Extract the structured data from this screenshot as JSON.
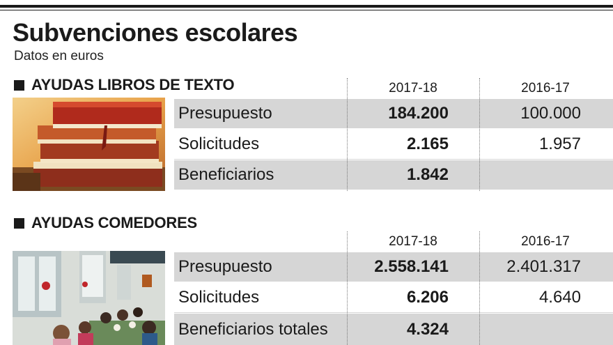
{
  "title": "Subvenciones escolares",
  "subtitle": "Datos en euros",
  "sections": [
    {
      "heading": "AYUDAS LIBROS DE TEXTO",
      "photo": "stacked-books",
      "columns": [
        "2017-18",
        "2016-17"
      ],
      "rows": [
        {
          "label": "Presupuesto",
          "a": "184.200",
          "b": "100.000"
        },
        {
          "label": "Solicitudes",
          "a": "2.165",
          "b": "1.957"
        },
        {
          "label": "Beneficiarios",
          "a": "1.842",
          "b": ""
        }
      ]
    },
    {
      "heading": "AYUDAS COMEDORES",
      "photo": "school-canteen",
      "columns": [
        "2017-18",
        "2016-17"
      ],
      "rows": [
        {
          "label": "Presupuesto",
          "a": "2.558.141",
          "b": "2.401.317"
        },
        {
          "label": "Solicitudes",
          "a": "6.206",
          "b": "4.640"
        },
        {
          "label": "Beneficiarios totales",
          "a": "4.324",
          "b": ""
        }
      ]
    }
  ]
}
